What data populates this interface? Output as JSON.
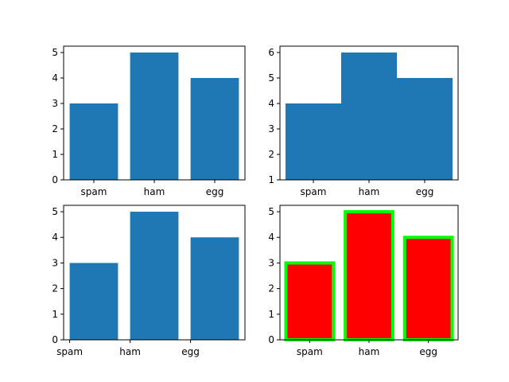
{
  "chart_data": [
    {
      "type": "bar",
      "categories": [
        "spam",
        "ham",
        "egg"
      ],
      "values": [
        3,
        5,
        4
      ],
      "ylim": [
        0,
        5.25
      ],
      "yticks": [
        0,
        1,
        2,
        3,
        4,
        5
      ],
      "bar_color": "#1f77b4",
      "tick_align": "center"
    },
    {
      "type": "bar",
      "categories": [
        "spam",
        "ham",
        "egg"
      ],
      "values": [
        3,
        5,
        4
      ],
      "bottom": 1,
      "bar_width": 1.0,
      "ylim": [
        1,
        6.25
      ],
      "yticks": [
        1,
        2,
        3,
        4,
        5,
        6
      ],
      "bar_color": "#1f77b4",
      "tick_align": "center"
    },
    {
      "type": "bar",
      "categories": [
        "spam",
        "ham",
        "egg"
      ],
      "values": [
        3,
        5,
        4
      ],
      "ylim": [
        0,
        5.25
      ],
      "yticks": [
        0,
        1,
        2,
        3,
        4,
        5
      ],
      "bar_color": "#1f77b4",
      "tick_align": "edge"
    },
    {
      "type": "bar",
      "categories": [
        "spam",
        "ham",
        "egg"
      ],
      "values": [
        3,
        5,
        4
      ],
      "ylim": [
        0,
        5.25
      ],
      "yticks": [
        0,
        1,
        2,
        3,
        4,
        5
      ],
      "bar_color": "#ff0000",
      "edge_color": "#00ff00",
      "tick_align": "center"
    }
  ]
}
